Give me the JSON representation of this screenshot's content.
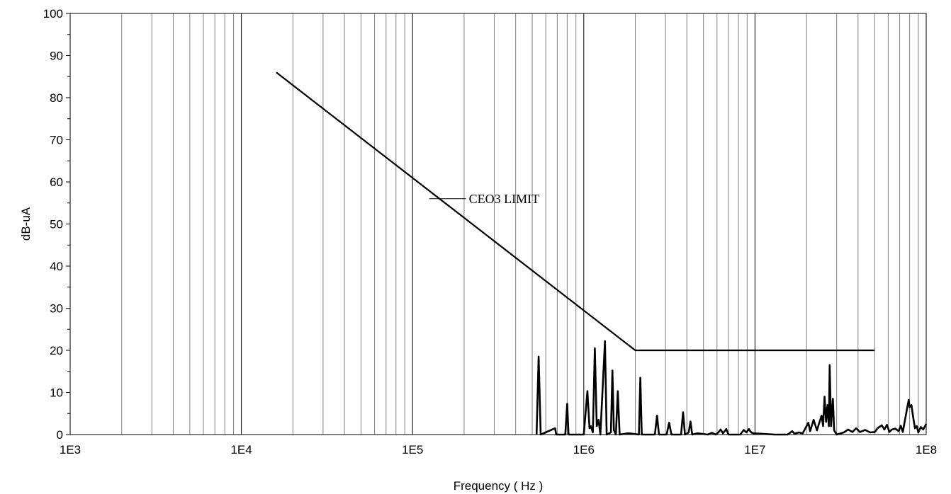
{
  "chart_data": {
    "type": "line",
    "xlabel": "Frequency ( Hz )",
    "ylabel": "dB-uA",
    "x_scale": "log",
    "xlim": [
      1000,
      100000000
    ],
    "ylim": [
      0,
      100
    ],
    "y_ticks": [
      0,
      10,
      20,
      30,
      40,
      50,
      60,
      70,
      80,
      90,
      100
    ],
    "x_ticks": [
      {
        "value": 1000,
        "label": "1E3"
      },
      {
        "value": 10000,
        "label": "1E4"
      },
      {
        "value": 100000,
        "label": "1E5"
      },
      {
        "value": 1000000,
        "label": "1E6"
      },
      {
        "value": 10000000,
        "label": "1E7"
      },
      {
        "value": 100000000,
        "label": "1E8"
      }
    ],
    "grid": true,
    "annotations": [
      {
        "text": "CEO3 LIMIT",
        "x": 125000,
        "y": 56
      }
    ],
    "series": [
      {
        "name": "CEO3 LIMIT",
        "points": [
          [
            16000,
            86
          ],
          [
            2000000,
            20
          ],
          [
            50000000,
            20
          ]
        ]
      },
      {
        "points": [
          [
            530000,
            0
          ],
          [
            545000,
            18.5
          ],
          [
            560000,
            0
          ],
          [
            680000,
            1.5
          ],
          [
            690000,
            0
          ],
          [
            780000,
            0
          ],
          [
            800000,
            7.3
          ],
          [
            815000,
            0
          ],
          [
            1000000,
            0
          ],
          [
            1050000,
            10.3
          ],
          [
            1080000,
            1.5
          ],
          [
            1100000,
            2
          ],
          [
            1130000,
            0.5
          ],
          [
            1160000,
            20.5
          ],
          [
            1190000,
            2
          ],
          [
            1220000,
            3.5
          ],
          [
            1250000,
            0
          ],
          [
            1330000,
            22.2
          ],
          [
            1360000,
            0
          ],
          [
            1440000,
            0.5
          ],
          [
            1470000,
            15.2
          ],
          [
            1500000,
            1
          ],
          [
            1540000,
            0
          ],
          [
            1580000,
            10.3
          ],
          [
            1620000,
            0
          ],
          [
            1820000,
            0.3
          ],
          [
            2100000,
            0
          ],
          [
            2140000,
            13.5
          ],
          [
            2180000,
            0
          ],
          [
            2600000,
            0
          ],
          [
            2680000,
            4.5
          ],
          [
            2750000,
            0
          ],
          [
            3050000,
            0
          ],
          [
            3150000,
            2.8
          ],
          [
            3250000,
            0
          ],
          [
            3700000,
            0
          ],
          [
            3800000,
            5.3
          ],
          [
            3900000,
            0
          ],
          [
            4100000,
            0.5
          ],
          [
            4200000,
            3.1
          ],
          [
            4300000,
            0
          ],
          [
            4600000,
            0.3
          ],
          [
            5300000,
            0
          ],
          [
            5600000,
            0.4
          ],
          [
            5900000,
            0
          ],
          [
            6100000,
            0.5
          ],
          [
            6300000,
            1.2
          ],
          [
            6500000,
            0.3
          ],
          [
            6800000,
            1.3
          ],
          [
            7000000,
            0
          ],
          [
            8200000,
            0
          ],
          [
            8600000,
            1.1
          ],
          [
            8900000,
            0.5
          ],
          [
            9200000,
            1.3
          ],
          [
            9500000,
            0.5
          ],
          [
            9800000,
            0.3
          ],
          [
            13000000,
            0
          ],
          [
            15500000,
            0
          ],
          [
            16500000,
            0.8
          ],
          [
            17000000,
            0.2
          ],
          [
            18000000,
            0.5
          ],
          [
            19000000,
            0.3
          ],
          [
            20500000,
            2.8
          ],
          [
            21000000,
            0.8
          ],
          [
            22000000,
            3.5
          ],
          [
            23000000,
            1
          ],
          [
            24500000,
            4.5
          ],
          [
            25000000,
            2
          ],
          [
            25500000,
            9
          ],
          [
            26000000,
            3
          ],
          [
            26500000,
            7
          ],
          [
            27000000,
            2
          ],
          [
            27300000,
            16.5
          ],
          [
            27800000,
            2
          ],
          [
            28500000,
            8.5
          ],
          [
            29000000,
            1
          ],
          [
            30000000,
            0
          ],
          [
            33000000,
            0.5
          ],
          [
            35000000,
            1.2
          ],
          [
            37000000,
            0.6
          ],
          [
            39000000,
            1.5
          ],
          [
            41000000,
            0.6
          ],
          [
            44000000,
            1.1
          ],
          [
            47000000,
            0.5
          ],
          [
            50000000,
            0.6
          ],
          [
            52000000,
            1.5
          ],
          [
            55000000,
            2.2
          ],
          [
            57000000,
            1.2
          ],
          [
            59000000,
            2.3
          ],
          [
            61000000,
            0.6
          ],
          [
            63000000,
            1.2
          ],
          [
            66000000,
            1.4
          ],
          [
            69000000,
            0.8
          ],
          [
            71000000,
            2.1
          ],
          [
            73000000,
            0.6
          ],
          [
            76000000,
            4.5
          ],
          [
            78000000,
            7
          ],
          [
            79000000,
            8.2
          ],
          [
            80000000,
            6.5
          ],
          [
            82000000,
            7
          ],
          [
            84000000,
            4
          ],
          [
            86000000,
            1.5
          ],
          [
            88000000,
            2
          ],
          [
            90000000,
            0.5
          ],
          [
            93000000,
            1.8
          ],
          [
            96000000,
            1.2
          ],
          [
            100000000,
            2.5
          ]
        ]
      }
    ]
  }
}
